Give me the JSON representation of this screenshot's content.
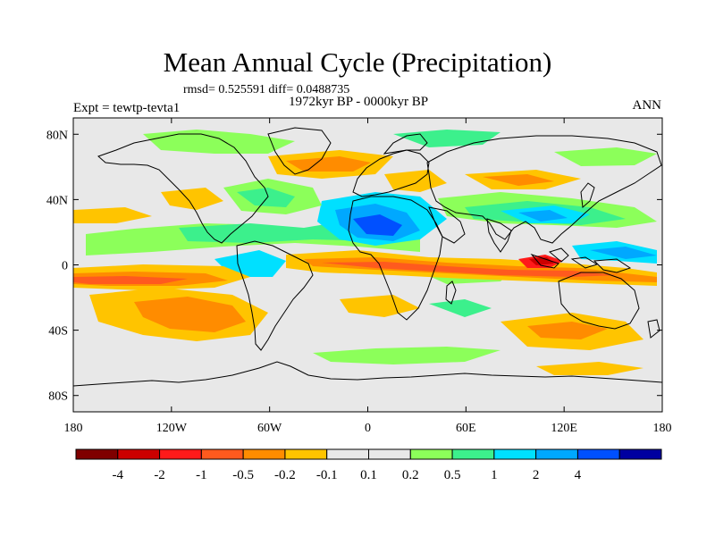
{
  "title": "Mean Annual Cycle (Precipitation)",
  "stats": "rmsd= 0.525591 diff= 0.0488735",
  "subtitle": "1972kyr BP - 0000kyr BP",
  "experiment": "Expt = tewtp-tevta1",
  "season": "ANN",
  "y_ticks": [
    "80N",
    "40N",
    "0",
    "40S",
    "80S"
  ],
  "x_ticks": [
    "180",
    "120W",
    "60W",
    "0",
    "60E",
    "120E",
    "180"
  ],
  "colorbar": {
    "colors": [
      "#7f0000",
      "#cc0000",
      "#ff1a1a",
      "#ff5a1e",
      "#ff8c00",
      "#ffc400",
      "#e8e8e8",
      "#e8e8e8",
      "#8cff5a",
      "#3cf08c",
      "#00e0ff",
      "#00a8ff",
      "#0050ff",
      "#0000a0"
    ],
    "labels": [
      "-4",
      "-2",
      "-1",
      "-0.5",
      "-0.2",
      "-0.1",
      "0.1",
      "0.2",
      "0.5",
      "1",
      "2",
      "4"
    ]
  },
  "palette": {
    "neutral": "#e8e8e8",
    "green": "#8cff5a",
    "teal": "#3cf08c",
    "cyan": "#00e0ff",
    "lightblue": "#00a8ff",
    "blue": "#0050ff",
    "yellow": "#ffc400",
    "orange": "#ff8c00",
    "orangered": "#ff5a1e",
    "red": "#ff1a1a",
    "darkred": "#cc0000"
  }
}
